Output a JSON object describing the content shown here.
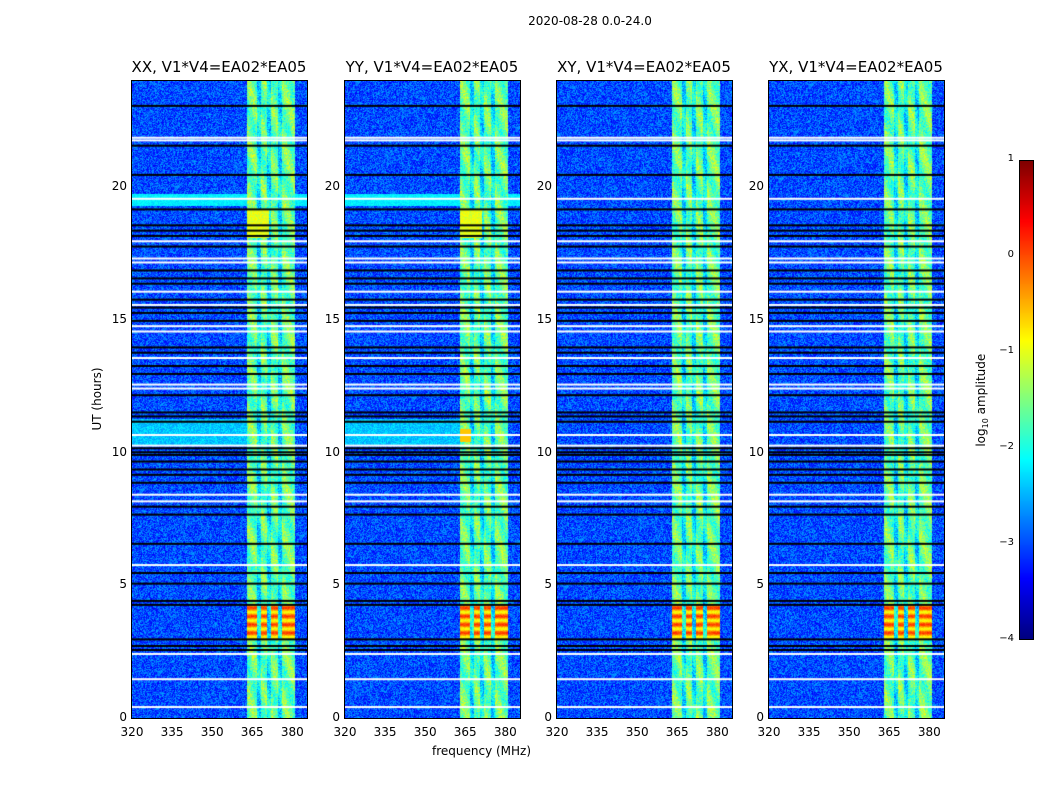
{
  "chart_data": {
    "type": "heatmap",
    "title": "2020-08-28 0.0-24.0",
    "xlabel": "frequency (MHz)",
    "ylabel": "UT (hours)",
    "xlim": [
      320,
      385.5
    ],
    "ylim": [
      0,
      24
    ],
    "xticks": [
      "320",
      "335",
      "350",
      "365",
      "380"
    ],
    "xtick_values": [
      320,
      335,
      350,
      365,
      380
    ],
    "yticks": [
      "0",
      "5",
      "10",
      "15",
      "20"
    ],
    "ytick_values": [
      0,
      5,
      10,
      15,
      20
    ],
    "panels": [
      {
        "title": "XX, V1*V4=EA02*EA05",
        "pol": "XX"
      },
      {
        "title": "YY, V1*V4=EA02*EA05",
        "pol": "YY"
      },
      {
        "title": "XY, V1*V4=EA02*EA05",
        "pol": "XY"
      },
      {
        "title": "YX, V1*V4=EA02*EA05",
        "pol": "YX"
      }
    ],
    "colorbar": {
      "label": "log10 amplitude",
      "label_main": "log",
      "label_sub": "10",
      "label_rest": " amplitude",
      "range": [
        -4,
        1
      ],
      "ticks": [
        "1",
        "0",
        "−1",
        "−2",
        "−3",
        "−4"
      ],
      "tick_values": [
        1,
        0,
        -1,
        -2,
        -3,
        -4
      ],
      "colormap": "jet"
    },
    "background_level": -3.0,
    "rfi_band_mhz": [
      363,
      381
    ],
    "rfi_band_level": -1.6,
    "strong_rfi_ut": [
      3.0,
      4.3
    ],
    "flagged_ut_white": [
      0.45,
      1.5,
      2.45,
      5.8,
      8.2,
      8.45,
      10.3,
      10.7,
      12.45,
      12.6,
      13.6,
      14.6,
      14.8,
      15.6,
      16.1,
      17.2,
      17.35,
      18.0,
      19.6,
      21.8,
      21.9
    ],
    "dark_ut_black": [
      2.6,
      2.75,
      3.0,
      4.3,
      4.45,
      5.1,
      5.5,
      6.6,
      7.7,
      8.0,
      8.9,
      9.2,
      9.4,
      9.7,
      9.95,
      10.05,
      10.2,
      11.2,
      11.4,
      11.55,
      12.2,
      13.0,
      13.3,
      13.8,
      14.0,
      15.0,
      15.3,
      15.5,
      15.8,
      16.4,
      16.6,
      16.9,
      17.8,
      18.2,
      18.4,
      18.6,
      19.2,
      20.5,
      21.6,
      23.1
    ]
  }
}
